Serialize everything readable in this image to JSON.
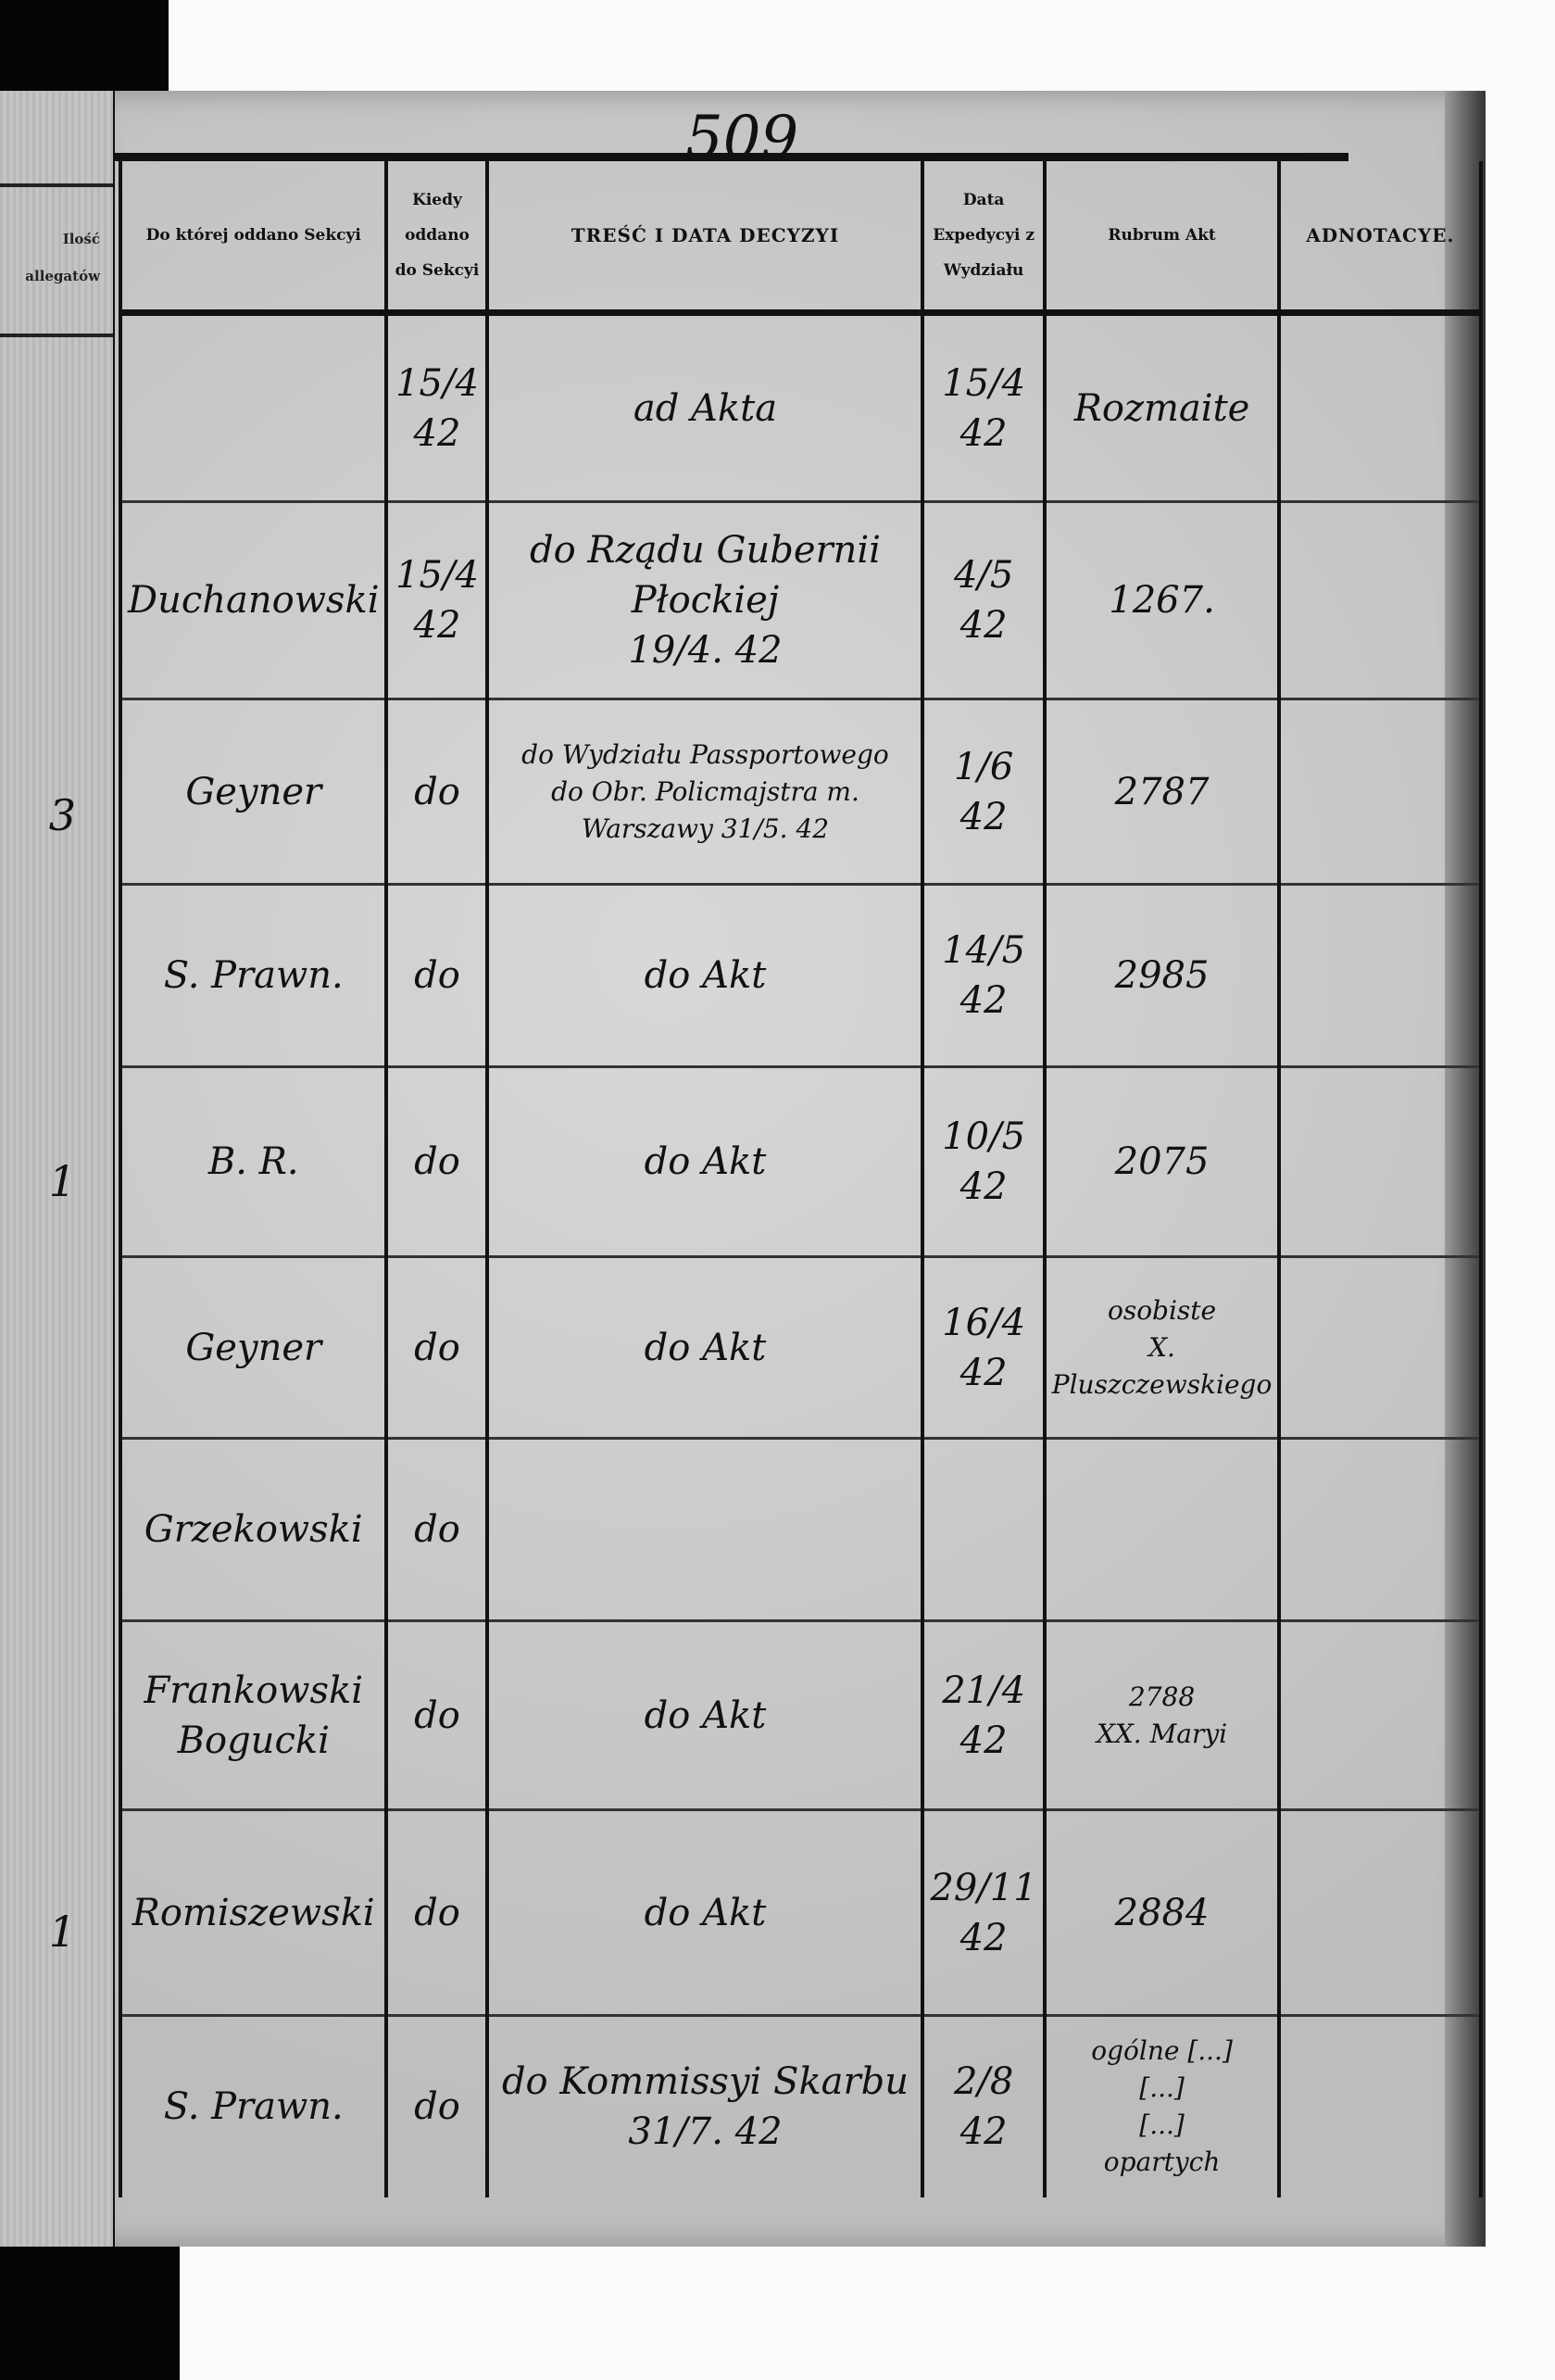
{
  "page_number": "509",
  "left_page": {
    "header": [
      "Ilość",
      "allegatów"
    ],
    "marks": [
      "3",
      "1",
      "1"
    ]
  },
  "columns": [
    "Do której oddano Sekcyi",
    "Kiedy oddano do Sekcyi",
    "TREŚĆ I DATA DECYZYI",
    "Data Expedycyi z Wydziału",
    "Rubrum Akt",
    "ADNOTACYE."
  ],
  "rows": [
    {
      "sekcja": "",
      "kiedy": "15/4\n42",
      "tresc": "ad Akta",
      "expedycya": "15/4\n42",
      "rubrum": "Rozmaite",
      "adnotacye": ""
    },
    {
      "sekcja": "Duchanowski",
      "kiedy": "15/4\n42",
      "tresc": "do Rządu Gubernii Płockiej\n19/4. 42",
      "expedycya": "4/5\n42",
      "rubrum": "1267.",
      "adnotacye": ""
    },
    {
      "sekcja": "Geyner",
      "kiedy": "do",
      "tresc": "do Wydziału Passportowego\ndo Obr. Policmajstra m.\nWarszawy 31/5. 42",
      "expedycya": "1/6\n42",
      "rubrum": "2787",
      "adnotacye": ""
    },
    {
      "sekcja": "S. Prawn.",
      "kiedy": "do",
      "tresc": "do Akt",
      "expedycya": "14/5\n42",
      "rubrum": "2985",
      "adnotacye": ""
    },
    {
      "sekcja": "B. R.",
      "kiedy": "do",
      "tresc": "do Akt",
      "expedycya": "10/5\n42",
      "rubrum": "2075",
      "adnotacye": ""
    },
    {
      "sekcja": "Geyner",
      "kiedy": "do",
      "tresc": "do Akt",
      "expedycya": "16/4\n42",
      "rubrum": "osobiste\nX. Pluszczewskiego",
      "adnotacye": ""
    },
    {
      "sekcja": "Grzekowski",
      "kiedy": "do",
      "tresc": "",
      "expedycya": "",
      "rubrum": "",
      "adnotacye": ""
    },
    {
      "sekcja": "Frankowski\nBogucki",
      "kiedy": "do",
      "tresc": "do Akt",
      "expedycya": "21/4\n42",
      "rubrum": "2788\nXX. Maryi",
      "adnotacye": ""
    },
    {
      "sekcja": "Romiszewski",
      "kiedy": "do",
      "tresc": "do Akt",
      "expedycya": "29/11\n42",
      "rubrum": "2884",
      "adnotacye": ""
    },
    {
      "sekcja": "S. Prawn.",
      "kiedy": "do",
      "tresc": "do Kommissyi Skarbu\n31/7. 42",
      "expedycya": "2/8\n42",
      "rubrum": "ogólne [...]\n[...]\n[...]\nopartych",
      "adnotacye": ""
    }
  ]
}
